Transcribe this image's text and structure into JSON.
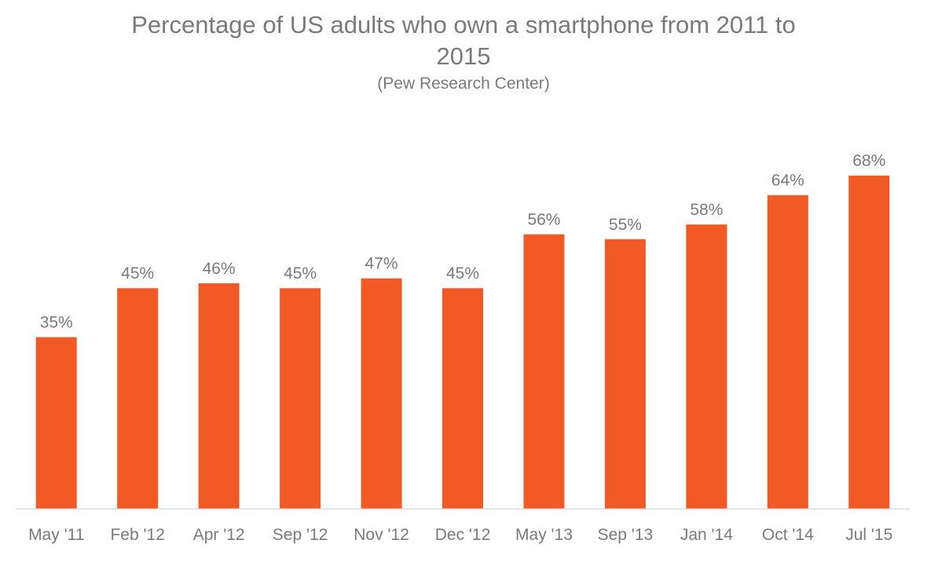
{
  "chart_data": {
    "type": "bar",
    "title": "Percentage of US adults who own a smartphone from 2011 to 2015",
    "subtitle": "(Pew Research Center)",
    "xlabel": "",
    "ylabel": "",
    "categories": [
      "May '11",
      "Feb '12",
      "Apr '12",
      "Sep '12",
      "Nov '12",
      "Dec '12",
      "May '13",
      "Sep '13",
      "Jan '14",
      "Oct '14",
      "Jul '15"
    ],
    "values": [
      35,
      45,
      46,
      45,
      47,
      45,
      56,
      55,
      58,
      64,
      68
    ],
    "data_labels": [
      "35%",
      "45%",
      "46%",
      "45%",
      "47%",
      "45%",
      "56%",
      "55%",
      "58%",
      "64%",
      "68%"
    ],
    "ylim": [
      0,
      100
    ],
    "grid": false,
    "legend": "none",
    "colors": {
      "bar": "#f15a24",
      "text": "#7a7a7a",
      "axis": "#d9d9d9"
    }
  }
}
